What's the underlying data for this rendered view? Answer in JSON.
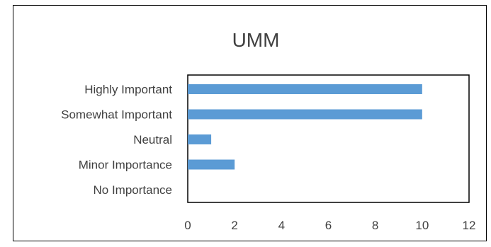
{
  "chart_data": {
    "type": "bar",
    "orientation": "horizontal",
    "title": "UMM",
    "categories": [
      "Highly Important",
      "Somewhat Important",
      "Neutral",
      "Minor Importance",
      "No Importance"
    ],
    "values": [
      10,
      10,
      1,
      2,
      0
    ],
    "xlim": [
      0,
      12
    ],
    "xticks": [
      "0",
      "2",
      "4",
      "6",
      "8",
      "10",
      "12"
    ],
    "xlabel": "",
    "ylabel": "",
    "grid": false,
    "legend": "none",
    "bar_color": "#5b9bd5"
  }
}
